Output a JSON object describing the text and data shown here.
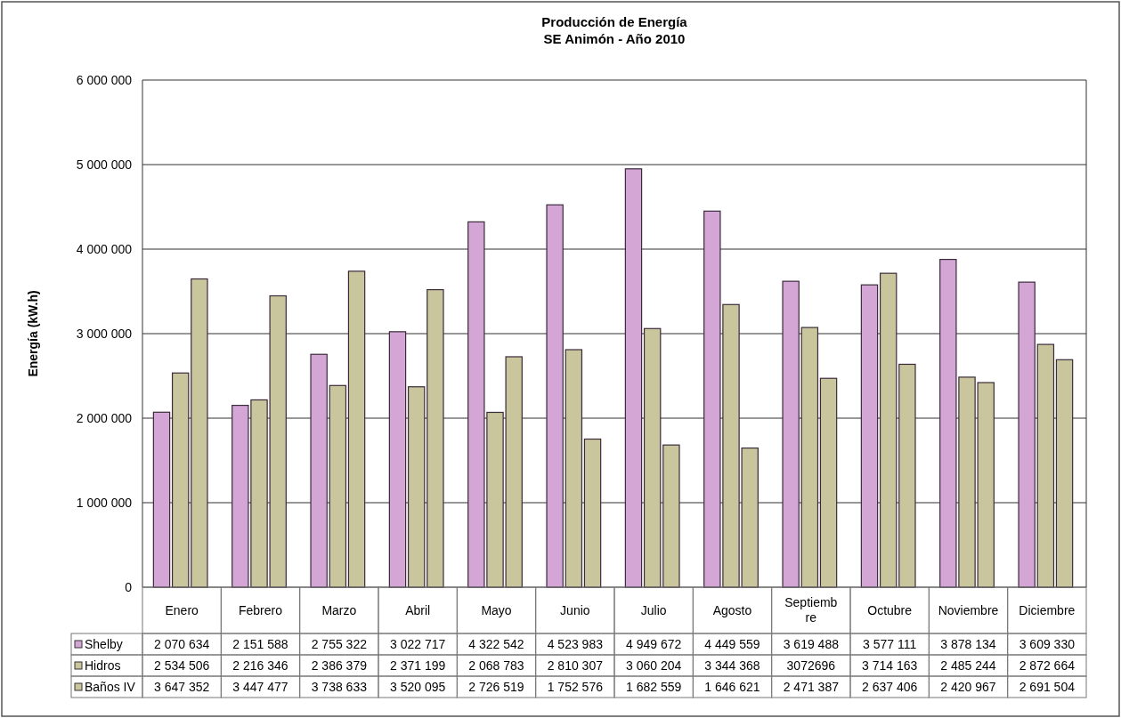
{
  "chart_data": {
    "type": "bar",
    "title": "Producción de Energía",
    "subtitle": "SE Animón - Año 2010",
    "ylabel": "Energía (kW.h)",
    "categories": [
      "Enero",
      "Febrero",
      "Marzo",
      "Abril",
      "Mayo",
      "Junio",
      "Julio",
      "Agosto",
      "Septiembre",
      "Octubre",
      "Noviembre",
      "Diciembre"
    ],
    "series": [
      {
        "name": "Shelby",
        "color": "#d4a6d6",
        "values": [
          2070634,
          2151588,
          2755322,
          3022717,
          4322542,
          4523983,
          4949672,
          4449559,
          3619488,
          3577111,
          3878134,
          3609330
        ],
        "value_labels": [
          "2 070 634",
          "2 151 588",
          "2 755 322",
          "3 022 717",
          "4 322 542",
          "4 523 983",
          "4 949 672",
          "4 449 559",
          "3 619 488",
          "3 577 111",
          "3 878 134",
          "3 609 330"
        ]
      },
      {
        "name": "Hidros",
        "color": "#c9c59c",
        "values": [
          2534506,
          2216346,
          2386379,
          2371199,
          2068783,
          2810307,
          3060204,
          3344368,
          3072696,
          3714163,
          2485244,
          2872664
        ],
        "value_labels": [
          "2 534 506",
          "2 216 346",
          "2 386 379",
          "2 371 199",
          "2 068 783",
          "2 810 307",
          "3 060 204",
          "3 344 368",
          "3072696",
          "3 714 163",
          "2 485 244",
          "2 872 664"
        ]
      },
      {
        "name": "Baños IV",
        "color": "#c9c59c",
        "values": [
          3647352,
          3447477,
          3738633,
          3520095,
          2726519,
          1752576,
          1682559,
          1646621,
          2471387,
          2637406,
          2420967,
          2691504
        ],
        "value_labels": [
          "3 647 352",
          "3 447 477",
          "3 738 633",
          "3 520 095",
          "2 726 519",
          "1 752 576",
          "1 682 559",
          "1 646 621",
          "2 471 387",
          "2 637 406",
          "2 420 967",
          "2 691 504"
        ]
      }
    ],
    "ylim": [
      0,
      6000000
    ],
    "yticks": [
      {
        "value": 0,
        "label": "0"
      },
      {
        "value": 1000000,
        "label": "1 000 000"
      },
      {
        "value": 2000000,
        "label": "2 000 000"
      },
      {
        "value": 3000000,
        "label": "3 000 000"
      },
      {
        "value": 4000000,
        "label": "4 000 000"
      },
      {
        "value": 5000000,
        "label": "5 000 000"
      },
      {
        "value": 6000000,
        "label": "6 000 000"
      }
    ],
    "grid": "y",
    "legend": "bottom left"
  }
}
